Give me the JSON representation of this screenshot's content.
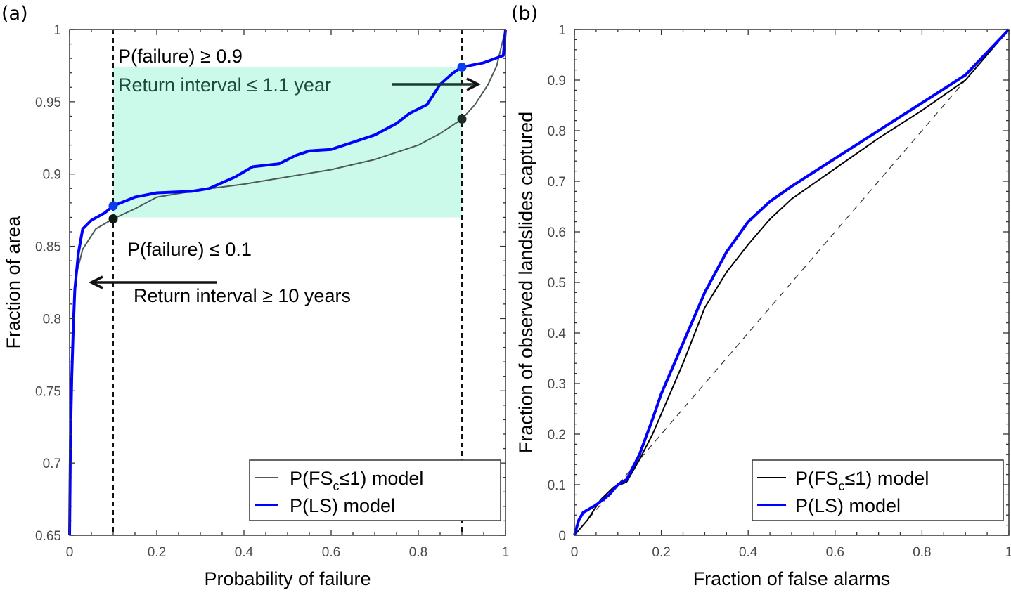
{
  "chart_data": [
    {
      "type": "line",
      "panel_label": "(a)",
      "xlabel": "Probability of failure",
      "ylabel": "Fraction of area",
      "xlim": [
        0,
        1
      ],
      "ylim": [
        0.65,
        1
      ],
      "xticks": [
        0,
        0.2,
        0.4,
        0.6,
        0.8,
        1
      ],
      "xtick_labels": [
        "0",
        "0.2",
        "0.4",
        "0.6",
        "0.8",
        "1"
      ],
      "yticks": [
        0.65,
        0.7,
        0.75,
        0.8,
        0.85,
        0.9,
        0.95,
        1
      ],
      "ytick_labels": [
        "0.65",
        "0.7",
        "0.75",
        "0.8",
        "0.85",
        "0.9",
        "0.95",
        "1"
      ],
      "grid": false,
      "legend_position": "bottom-right",
      "series": [
        {
          "name": "P(FSc≤1) model",
          "legend_main": "P(FS",
          "legend_sub": "c",
          "legend_rest": "≤1) model",
          "color": "#4d5a55",
          "x": [
            0,
            0.003,
            0.008,
            0.015,
            0.03,
            0.06,
            0.1,
            0.15,
            0.2,
            0.3,
            0.4,
            0.5,
            0.6,
            0.7,
            0.8,
            0.85,
            0.9,
            0.93,
            0.96,
            0.98,
            1.0
          ],
          "y": [
            0.65,
            0.75,
            0.79,
            0.83,
            0.848,
            0.862,
            0.869,
            0.876,
            0.884,
            0.889,
            0.893,
            0.898,
            0.903,
            0.91,
            0.92,
            0.928,
            0.938,
            0.948,
            0.962,
            0.975,
            1.0
          ]
        },
        {
          "name": "P(LS) model",
          "legend_main": "P(LS) model",
          "legend_sub": "",
          "legend_rest": "",
          "color": "#0000ff",
          "x": [
            0,
            0.002,
            0.005,
            0.008,
            0.012,
            0.02,
            0.03,
            0.05,
            0.08,
            0.1,
            0.15,
            0.2,
            0.28,
            0.32,
            0.38,
            0.42,
            0.48,
            0.52,
            0.55,
            0.6,
            0.65,
            0.7,
            0.75,
            0.78,
            0.82,
            0.85,
            0.88,
            0.9,
            0.95,
            0.995,
            1.0
          ],
          "y": [
            0.65,
            0.715,
            0.76,
            0.79,
            0.82,
            0.845,
            0.862,
            0.868,
            0.873,
            0.878,
            0.884,
            0.887,
            0.888,
            0.89,
            0.898,
            0.905,
            0.907,
            0.913,
            0.916,
            0.917,
            0.922,
            0.927,
            0.935,
            0.942,
            0.948,
            0.962,
            0.97,
            0.974,
            0.977,
            0.982,
            1.0
          ]
        }
      ],
      "markers": [
        {
          "series": "P(LS) model",
          "x": 0.1,
          "y": 0.878,
          "color": "#0a3cf0"
        },
        {
          "series": "P(FSc≤1) model",
          "x": 0.1,
          "y": 0.869,
          "color": "#0d1a14"
        },
        {
          "series": "P(LS) model",
          "x": 0.9,
          "y": 0.974,
          "color": "#0a3cf0"
        },
        {
          "series": "P(FSc≤1) model",
          "x": 0.9,
          "y": 0.938,
          "color": "#1a2e25"
        }
      ],
      "vlines": [
        0.1,
        0.9
      ],
      "shaded_region": {
        "x": [
          0.1,
          0.9
        ],
        "y": [
          0.87,
          0.974
        ],
        "color": "#ccfaea"
      },
      "annotations": [
        {
          "text": "P(failure) ≥ 0.9",
          "color": "#000000"
        },
        {
          "text": "Return interval ≤ 1.1 year",
          "color": "#1d4a3c",
          "arrow": "right"
        },
        {
          "text": "P(failure) ≤ 0.1",
          "color": "#000000",
          "arrow": "left"
        },
        {
          "text": "Return interval ≥ 10 years",
          "color": "#000000"
        }
      ]
    },
    {
      "type": "line",
      "panel_label": "(b)",
      "xlabel": "Fraction of false alarms",
      "ylabel": "Fraction of observed landslides captured",
      "xlim": [
        0,
        1
      ],
      "ylim": [
        0,
        1
      ],
      "xticks": [
        0,
        0.2,
        0.4,
        0.6,
        0.8,
        1
      ],
      "xtick_labels": [
        "0",
        "0.2",
        "0.4",
        "0.6",
        "0.8",
        "1"
      ],
      "yticks": [
        0,
        0.1,
        0.2,
        0.3,
        0.4,
        0.5,
        0.6,
        0.7,
        0.8,
        0.9,
        1
      ],
      "ytick_labels": [
        "0",
        "0.1",
        "0.2",
        "0.3",
        "0.4",
        "0.5",
        "0.6",
        "0.7",
        "0.8",
        "0.9",
        "1"
      ],
      "grid": false,
      "legend_position": "bottom-right",
      "series": [
        {
          "name": "P(FSc≤1) model",
          "legend_main": "P(FS",
          "legend_sub": "c",
          "legend_rest": "≤1) model",
          "color": "#000000",
          "x": [
            0,
            0.03,
            0.06,
            0.09,
            0.12,
            0.15,
            0.18,
            0.2,
            0.25,
            0.3,
            0.35,
            0.4,
            0.45,
            0.5,
            0.6,
            0.7,
            0.8,
            0.9,
            1.0
          ],
          "y": [
            0,
            0.03,
            0.07,
            0.095,
            0.105,
            0.15,
            0.2,
            0.24,
            0.34,
            0.45,
            0.52,
            0.575,
            0.625,
            0.665,
            0.725,
            0.785,
            0.84,
            0.9,
            1.0
          ]
        },
        {
          "name": "P(LS) model",
          "legend_main": "P(LS) model",
          "legend_sub": "",
          "legend_rest": "",
          "color": "#0000ff",
          "x": [
            0,
            0.01,
            0.02,
            0.05,
            0.08,
            0.1,
            0.12,
            0.15,
            0.18,
            0.2,
            0.25,
            0.3,
            0.35,
            0.4,
            0.45,
            0.5,
            0.6,
            0.7,
            0.8,
            0.9,
            1.0
          ],
          "y": [
            0,
            0.03,
            0.045,
            0.06,
            0.08,
            0.1,
            0.11,
            0.16,
            0.23,
            0.28,
            0.38,
            0.48,
            0.56,
            0.62,
            0.66,
            0.69,
            0.745,
            0.8,
            0.855,
            0.91,
            1.0
          ]
        },
        {
          "name": "random (1:1 line)",
          "color": "#333333",
          "dashed": true,
          "x": [
            0,
            1
          ],
          "y": [
            0,
            1
          ]
        }
      ]
    }
  ]
}
